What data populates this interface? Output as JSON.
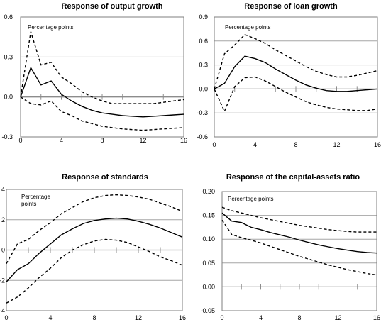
{
  "chart_data": [
    {
      "type": "line",
      "title": "Response of output growth",
      "note": "Percentage points",
      "ylim": [
        -0.3,
        0.6
      ],
      "yticks": [
        "0.6",
        "0.3",
        "0.0",
        "-0.3"
      ],
      "xlim": [
        0,
        16
      ],
      "xticks": [
        "0",
        "4",
        "8",
        "12",
        "16"
      ],
      "gridlines": [
        0.3
      ],
      "x": [
        0,
        1,
        2,
        3,
        4,
        5,
        6,
        7,
        8,
        9,
        10,
        11,
        12,
        13,
        14,
        15,
        16
      ],
      "series": [
        {
          "role": "estimate",
          "values": [
            0.0,
            0.22,
            0.09,
            0.12,
            0.02,
            -0.03,
            -0.07,
            -0.1,
            -0.12,
            -0.13,
            -0.14,
            -0.145,
            -0.15,
            -0.145,
            -0.14,
            -0.135,
            -0.13
          ]
        },
        {
          "role": "upper",
          "values": [
            0.0,
            0.49,
            0.24,
            0.26,
            0.15,
            0.1,
            0.04,
            0.0,
            -0.03,
            -0.05,
            -0.05,
            -0.05,
            -0.05,
            -0.05,
            -0.04,
            -0.03,
            -0.02
          ]
        },
        {
          "role": "lower",
          "values": [
            0.0,
            -0.05,
            -0.06,
            -0.03,
            -0.11,
            -0.14,
            -0.18,
            -0.2,
            -0.22,
            -0.23,
            -0.24,
            -0.245,
            -0.25,
            -0.245,
            -0.24,
            -0.235,
            -0.23
          ]
        }
      ]
    },
    {
      "type": "line",
      "title": "Response of loan growth",
      "note": "Percentage points",
      "ylim": [
        -0.6,
        0.9
      ],
      "yticks": [
        "0.9",
        "0.6",
        "0.3",
        "0.0",
        "-0.3",
        "-0.6"
      ],
      "xlim": [
        0,
        16
      ],
      "xticks": [
        "0",
        "4",
        "8",
        "12",
        "16"
      ],
      "gridlines": [
        0.9,
        0.6,
        0.3,
        -0.3
      ],
      "x": [
        0,
        1,
        2,
        3,
        4,
        5,
        6,
        7,
        8,
        9,
        10,
        11,
        12,
        13,
        14,
        15,
        16
      ],
      "series": [
        {
          "role": "estimate",
          "values": [
            0.0,
            0.07,
            0.28,
            0.41,
            0.38,
            0.33,
            0.25,
            0.18,
            0.11,
            0.05,
            0.01,
            -0.02,
            -0.03,
            -0.03,
            -0.02,
            -0.01,
            0.0
          ]
        },
        {
          "role": "upper",
          "values": [
            0.0,
            0.44,
            0.55,
            0.68,
            0.63,
            0.57,
            0.49,
            0.42,
            0.35,
            0.28,
            0.22,
            0.18,
            0.15,
            0.15,
            0.17,
            0.2,
            0.23
          ]
        },
        {
          "role": "lower",
          "values": [
            0.0,
            -0.28,
            0.03,
            0.14,
            0.15,
            0.1,
            0.03,
            -0.04,
            -0.1,
            -0.16,
            -0.2,
            -0.23,
            -0.25,
            -0.26,
            -0.27,
            -0.27,
            -0.25
          ]
        }
      ]
    },
    {
      "type": "line",
      "title": "Response of standards",
      "note": "Percentage points",
      "ylim": [
        -4,
        4
      ],
      "yticks": [
        "4",
        "2",
        "0",
        "-2",
        "-4"
      ],
      "xlim": [
        0,
        16
      ],
      "xticks": [
        "0",
        "4",
        "8",
        "12",
        "16"
      ],
      "gridlines": [
        2,
        -2
      ],
      "x": [
        0,
        1,
        2,
        3,
        4,
        5,
        6,
        7,
        8,
        9,
        10,
        11,
        12,
        13,
        14,
        15,
        16
      ],
      "series": [
        {
          "role": "estimate",
          "values": [
            -2.1,
            -1.3,
            -0.9,
            -0.2,
            0.4,
            1.0,
            1.4,
            1.75,
            1.95,
            2.05,
            2.1,
            2.05,
            1.9,
            1.7,
            1.45,
            1.15,
            0.85
          ]
        },
        {
          "role": "upper",
          "values": [
            -0.9,
            0.4,
            0.7,
            1.3,
            1.8,
            2.4,
            2.8,
            3.2,
            3.45,
            3.6,
            3.65,
            3.6,
            3.5,
            3.35,
            3.1,
            2.85,
            2.55
          ]
        },
        {
          "role": "lower",
          "values": [
            -3.5,
            -3.1,
            -2.5,
            -1.8,
            -1.2,
            -0.5,
            0.0,
            0.35,
            0.6,
            0.7,
            0.65,
            0.5,
            0.2,
            -0.1,
            -0.45,
            -0.7,
            -1.0
          ]
        }
      ]
    },
    {
      "type": "line",
      "title": "Response of the capital-assets ratio",
      "note": "Percentage points",
      "ylim": [
        -0.05,
        0.2
      ],
      "yticks": [
        "0.20",
        "0.15",
        "0.10",
        "0.05",
        "0.00",
        "-0.05"
      ],
      "xlim": [
        0,
        16
      ],
      "xticks": [
        "0",
        "4",
        "8",
        "12",
        "16"
      ],
      "gridlines": [
        0.2,
        0.15,
        0.1,
        0.05,
        -0.05
      ],
      "x": [
        0,
        1,
        2,
        3,
        4,
        5,
        6,
        7,
        8,
        9,
        10,
        11,
        12,
        13,
        14,
        15,
        16
      ],
      "series": [
        {
          "role": "estimate",
          "values": [
            0.155,
            0.138,
            0.135,
            0.125,
            0.12,
            0.114,
            0.109,
            0.104,
            0.098,
            0.093,
            0.088,
            0.084,
            0.08,
            0.077,
            0.074,
            0.072,
            0.071
          ]
        },
        {
          "role": "upper",
          "values": [
            0.167,
            0.16,
            0.155,
            0.15,
            0.145,
            0.141,
            0.137,
            0.133,
            0.129,
            0.126,
            0.123,
            0.12,
            0.118,
            0.116,
            0.115,
            0.115,
            0.115
          ]
        },
        {
          "role": "lower",
          "values": [
            0.14,
            0.11,
            0.103,
            0.098,
            0.092,
            0.085,
            0.078,
            0.071,
            0.064,
            0.058,
            0.052,
            0.046,
            0.041,
            0.036,
            0.032,
            0.028,
            0.025
          ]
        }
      ]
    }
  ]
}
